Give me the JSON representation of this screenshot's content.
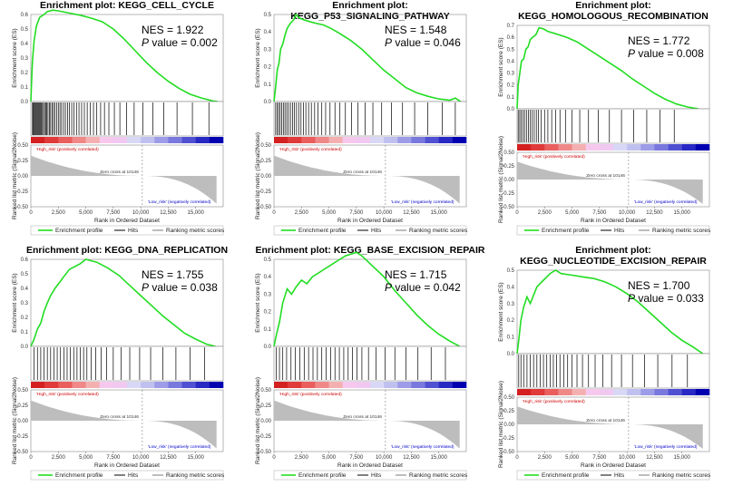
{
  "labels": {
    "es_axis": "Enrichment score (ES)",
    "rank_axis": "Rank in Ordered Dataset",
    "metric_axis": "Ranked list metric (Signal2Noise)",
    "high_label": "'High_risk' (positively correlated)",
    "low_label": "'Low_risk' (negatively correlated)",
    "zero_cross": "Zero cross at 10146",
    "nes_prefix": "NES = ",
    "p_label": "P",
    "p_suffix": " value = ",
    "legend_profile": "Enrichment profile",
    "legend_hits": "Hits",
    "legend_metric": "Ranking metric scores"
  },
  "colors": {
    "profile": "#22dd22",
    "hits": "#000000",
    "metric_fill": "#bdbdbd",
    "high_text": "#cc0000",
    "low_text": "#0000cc"
  },
  "chart_data": [
    {
      "type": "line",
      "title_lines": [
        "Enrichment plot: KEGG_CELL_CYCLE"
      ],
      "nes": "1.922",
      "p": "0.002",
      "ylim": [
        0,
        0.6
      ],
      "yticks": [
        "0.0",
        "0.1",
        "0.2",
        "0.3",
        "0.4",
        "0.5",
        "0.6"
      ],
      "metric_ticks": [
        "0.50",
        "0.25",
        "0.00",
        "-0.25",
        "-0.50"
      ],
      "xlim": [
        0,
        17500
      ],
      "xticks": [
        "0",
        "2,500",
        "5,000",
        "7,500",
        "10,000",
        "12,500",
        "15,000"
      ],
      "xlabel": "Rank in Ordered Dataset",
      "ylabel": "Enrichment score (ES)",
      "profile": [
        [
          0,
          0.0
        ],
        [
          60,
          0.12
        ],
        [
          150,
          0.28
        ],
        [
          300,
          0.42
        ],
        [
          500,
          0.52
        ],
        [
          800,
          0.58
        ],
        [
          1200,
          0.6
        ],
        [
          1500,
          0.62
        ],
        [
          2000,
          0.63
        ],
        [
          2500,
          0.625
        ],
        [
          3500,
          0.61
        ],
        [
          4500,
          0.595
        ],
        [
          5500,
          0.575
        ],
        [
          6500,
          0.55
        ],
        [
          7500,
          0.5
        ],
        [
          8500,
          0.43
        ],
        [
          9500,
          0.35
        ],
        [
          10500,
          0.27
        ],
        [
          11500,
          0.2
        ],
        [
          12500,
          0.14
        ],
        [
          13500,
          0.09
        ],
        [
          14500,
          0.05
        ],
        [
          15500,
          0.025
        ],
        [
          16500,
          0.005
        ],
        [
          17000,
          0.0
        ]
      ],
      "hits": [
        150,
        220,
        300,
        380,
        460,
        540,
        620,
        700,
        790,
        880,
        960,
        1050,
        1150,
        1250,
        1350,
        1450,
        1560,
        1680,
        1800,
        1930,
        2060,
        2200,
        2350,
        2500,
        2650,
        2800,
        2980,
        3150,
        3330,
        3520,
        3720,
        3930,
        4150,
        4380,
        4620,
        4870,
        5130,
        5400,
        5700,
        6000,
        6350,
        6700,
        7100,
        7600,
        8100,
        8700,
        9400,
        10200,
        11100,
        12100,
        13300,
        14700,
        16200
      ]
    },
    {
      "type": "line",
      "title_lines": [
        "Enrichment plot: KEGG_P53_SIGNALING_PATHWAY"
      ],
      "nes": "1.548",
      "p": "0.046",
      "ylim": [
        0,
        0.5
      ],
      "yticks": [
        "0.0",
        "0.1",
        "0.2",
        "0.3",
        "0.4",
        "0.5"
      ],
      "metric_ticks": [
        "0.50",
        "0.25",
        "0.00",
        "-0.25",
        "-0.50"
      ],
      "xlim": [
        0,
        17500
      ],
      "xticks": [
        "0",
        "2,500",
        "5,000",
        "7,500",
        "10,000",
        "12,500",
        "15,000"
      ],
      "xlabel": "Rank in Ordered Dataset",
      "ylabel": "Enrichment score (ES)",
      "profile": [
        [
          0,
          0.0
        ],
        [
          150,
          0.08
        ],
        [
          300,
          0.18
        ],
        [
          450,
          0.22
        ],
        [
          600,
          0.3
        ],
        [
          800,
          0.33
        ],
        [
          1000,
          0.38
        ],
        [
          1200,
          0.42
        ],
        [
          1500,
          0.45
        ],
        [
          1800,
          0.47
        ],
        [
          2000,
          0.5
        ],
        [
          2300,
          0.48
        ],
        [
          2700,
          0.47
        ],
        [
          3200,
          0.46
        ],
        [
          3800,
          0.45
        ],
        [
          4500,
          0.44
        ],
        [
          5200,
          0.42
        ],
        [
          6000,
          0.39
        ],
        [
          7000,
          0.35
        ],
        [
          8000,
          0.3
        ],
        [
          9000,
          0.24
        ],
        [
          10000,
          0.18
        ],
        [
          11000,
          0.13
        ],
        [
          12000,
          0.08
        ],
        [
          13000,
          0.05
        ],
        [
          14000,
          0.03
        ],
        [
          15000,
          0.015
        ],
        [
          16000,
          0.008
        ],
        [
          16500,
          0.02
        ],
        [
          17000,
          0.0
        ]
      ],
      "hits": [
        150,
        280,
        420,
        560,
        700,
        850,
        1000,
        1160,
        1320,
        1500,
        1680,
        1860,
        2050,
        2250,
        2460,
        2680,
        2900,
        3150,
        3400,
        3700,
        4000,
        4350,
        4700,
        5100,
        5550,
        6000,
        6500,
        7050,
        7650,
        8300,
        9000,
        9800,
        10700,
        11700,
        12800,
        14000,
        15300,
        16500
      ]
    },
    {
      "type": "line",
      "title_lines": [
        "Enrichment plot:",
        "KEGG_HOMOLOGOUS_RECOMBINATION"
      ],
      "nes": "1.772",
      "p": "0.008",
      "ylim": [
        0,
        0.7
      ],
      "yticks": [
        "0.0",
        "0.1",
        "0.2",
        "0.3",
        "0.4",
        "0.5",
        "0.6",
        "0.7"
      ],
      "metric_ticks": [
        "0.50",
        "0.25",
        "0.00",
        "-0.25",
        "-0.50"
      ],
      "xlim": [
        0,
        17500
      ],
      "xticks": [
        "0",
        "2,500",
        "5,000",
        "7,500",
        "10,000",
        "12,500",
        "15,000"
      ],
      "xlabel": "Rank in Ordered Dataset",
      "ylabel": "Enrichment score (ES)",
      "profile": [
        [
          0,
          0.0
        ],
        [
          100,
          0.2
        ],
        [
          250,
          0.3
        ],
        [
          400,
          0.4
        ],
        [
          600,
          0.42
        ],
        [
          800,
          0.5
        ],
        [
          1000,
          0.52
        ],
        [
          1200,
          0.58
        ],
        [
          1400,
          0.6
        ],
        [
          1700,
          0.62
        ],
        [
          2000,
          0.68
        ],
        [
          2400,
          0.67
        ],
        [
          2800,
          0.65
        ],
        [
          3500,
          0.63
        ],
        [
          4500,
          0.6
        ],
        [
          5500,
          0.56
        ],
        [
          6500,
          0.5
        ],
        [
          7500,
          0.44
        ],
        [
          8500,
          0.38
        ],
        [
          9500,
          0.32
        ],
        [
          10500,
          0.25
        ],
        [
          11500,
          0.19
        ],
        [
          12500,
          0.13
        ],
        [
          13500,
          0.08
        ],
        [
          14500,
          0.04
        ],
        [
          15500,
          0.015
        ],
        [
          16500,
          0.0
        ]
      ],
      "hits": [
        100,
        240,
        380,
        530,
        680,
        850,
        1020,
        1200,
        1380,
        1560,
        1750,
        1950,
        2200,
        2500,
        2800,
        3150,
        3500,
        3900,
        4400,
        5000,
        5700,
        6500,
        7400,
        8400,
        9500,
        10600,
        11800,
        13000,
        14300
      ]
    },
    {
      "type": "line",
      "title_lines": [
        "Enrichment plot: KEGG_DNA_REPLICATION"
      ],
      "nes": "1.755",
      "p": "0.038",
      "ylim": [
        0,
        0.6
      ],
      "yticks": [
        "0.0",
        "0.1",
        "0.2",
        "0.3",
        "0.4",
        "0.5",
        "0.6"
      ],
      "metric_ticks": [
        "0.50",
        "0.25",
        "0.00",
        "-0.25",
        "-0.50"
      ],
      "xlim": [
        0,
        17500
      ],
      "xticks": [
        "0",
        "2,500",
        "5,000",
        "7,500",
        "10,000",
        "12,500",
        "15,000"
      ],
      "xlabel": "Rank in Ordered Dataset",
      "ylabel": "Enrichment score (ES)",
      "profile": [
        [
          0,
          0.0
        ],
        [
          300,
          0.05
        ],
        [
          600,
          0.12
        ],
        [
          900,
          0.16
        ],
        [
          1200,
          0.24
        ],
        [
          1500,
          0.3
        ],
        [
          1800,
          0.35
        ],
        [
          2200,
          0.4
        ],
        [
          2600,
          0.44
        ],
        [
          3000,
          0.48
        ],
        [
          3500,
          0.53
        ],
        [
          4000,
          0.55
        ],
        [
          4500,
          0.57
        ],
        [
          5000,
          0.6
        ],
        [
          5500,
          0.59
        ],
        [
          6000,
          0.58
        ],
        [
          7000,
          0.54
        ],
        [
          8000,
          0.49
        ],
        [
          9000,
          0.42
        ],
        [
          10000,
          0.35
        ],
        [
          11000,
          0.28
        ],
        [
          12000,
          0.21
        ],
        [
          13000,
          0.15
        ],
        [
          14000,
          0.09
        ],
        [
          15000,
          0.05
        ],
        [
          16000,
          0.015
        ],
        [
          16800,
          0.0
        ]
      ],
      "hits": [
        300,
        600,
        900,
        1200,
        1500,
        1800,
        2100,
        2400,
        2700,
        3000,
        3300,
        3600,
        3900,
        4200,
        4500,
        4800,
        5100,
        5500,
        5900,
        6400,
        6900,
        7500,
        8200,
        9000,
        9900,
        10900,
        12000,
        13200,
        14500,
        15800
      ]
    },
    {
      "type": "line",
      "title_lines": [
        "Enrichment plot: KEGG_BASE_EXCISION_REPAIR"
      ],
      "nes": "1.715",
      "p": "0.042",
      "ylim": [
        0,
        0.5
      ],
      "yticks": [
        "0.0",
        "0.1",
        "0.2",
        "0.3",
        "0.4",
        "0.5"
      ],
      "metric_ticks": [
        "0.50",
        "0.25",
        "0.00",
        "-0.25",
        "-0.50"
      ],
      "xlim": [
        0,
        17500
      ],
      "xticks": [
        "0",
        "2,500",
        "5,000",
        "7,500",
        "10,000",
        "12,500",
        "15,000"
      ],
      "xlabel": "Rank in Ordered Dataset",
      "ylabel": "Enrichment score (ES)",
      "profile": [
        [
          0,
          0.0
        ],
        [
          200,
          0.06
        ],
        [
          500,
          0.14
        ],
        [
          800,
          0.25
        ],
        [
          1200,
          0.33
        ],
        [
          1600,
          0.3
        ],
        [
          2000,
          0.34
        ],
        [
          2500,
          0.38
        ],
        [
          3000,
          0.36
        ],
        [
          3500,
          0.4
        ],
        [
          4000,
          0.42
        ],
        [
          4500,
          0.44
        ],
        [
          5000,
          0.46
        ],
        [
          5500,
          0.48
        ],
        [
          6000,
          0.5
        ],
        [
          6500,
          0.52
        ],
        [
          7000,
          0.53
        ],
        [
          7500,
          0.54
        ],
        [
          8000,
          0.52
        ],
        [
          9000,
          0.46
        ],
        [
          10000,
          0.4
        ],
        [
          11000,
          0.32
        ],
        [
          12000,
          0.25
        ],
        [
          13000,
          0.18
        ],
        [
          14000,
          0.12
        ],
        [
          15000,
          0.07
        ],
        [
          16000,
          0.03
        ],
        [
          16900,
          0.0
        ]
      ],
      "hits": [
        200,
        500,
        800,
        1150,
        1550,
        1950,
        2350,
        2750,
        3150,
        3550,
        3950,
        4350,
        4750,
        5150,
        5550,
        5950,
        6350,
        6750,
        7150,
        7550,
        8000,
        8600,
        9300,
        10100,
        11000,
        12000,
        13100,
        14300,
        15600
      ]
    },
    {
      "type": "line",
      "title_lines": [
        "Enrichment plot:",
        "KEGG_NUCLEOTIDE_EXCISION_REPAIR"
      ],
      "nes": "1.700",
      "p": "0.033",
      "ylim": [
        0,
        0.5
      ],
      "yticks": [
        "0.0",
        "0.1",
        "0.2",
        "0.3",
        "0.4",
        "0.5"
      ],
      "metric_ticks": [
        "0.50",
        "0.25",
        "0.00",
        "-0.25",
        "-0.50"
      ],
      "xlim": [
        0,
        17500
      ],
      "xticks": [
        "0",
        "2,500",
        "5,000",
        "7,500",
        "10,000",
        "12,500",
        "15,000"
      ],
      "xlabel": "Rank in Ordered Dataset",
      "ylabel": "Enrichment score (ES)",
      "profile": [
        [
          0,
          0.0
        ],
        [
          150,
          0.08
        ],
        [
          350,
          0.2
        ],
        [
          600,
          0.28
        ],
        [
          900,
          0.34
        ],
        [
          1200,
          0.3
        ],
        [
          1500,
          0.35
        ],
        [
          1800,
          0.4
        ],
        [
          2100,
          0.42
        ],
        [
          2400,
          0.44
        ],
        [
          2700,
          0.46
        ],
        [
          3000,
          0.48
        ],
        [
          3500,
          0.5
        ],
        [
          4000,
          0.48
        ],
        [
          5000,
          0.47
        ],
        [
          6000,
          0.46
        ],
        [
          7000,
          0.45
        ],
        [
          8000,
          0.43
        ],
        [
          9000,
          0.4
        ],
        [
          10000,
          0.36
        ],
        [
          11000,
          0.31
        ],
        [
          12000,
          0.25
        ],
        [
          13000,
          0.19
        ],
        [
          14000,
          0.13
        ],
        [
          15000,
          0.08
        ],
        [
          16000,
          0.04
        ],
        [
          16900,
          0.0
        ]
      ],
      "hits": [
        150,
        350,
        600,
        900,
        1200,
        1500,
        1800,
        2100,
        2400,
        2700,
        3000,
        3300,
        3600,
        3900,
        4250,
        4600,
        5000,
        5450,
        5950,
        6500,
        7100,
        7800,
        8600,
        9500,
        10500,
        11600,
        12800,
        14100,
        15500
      ]
    }
  ]
}
